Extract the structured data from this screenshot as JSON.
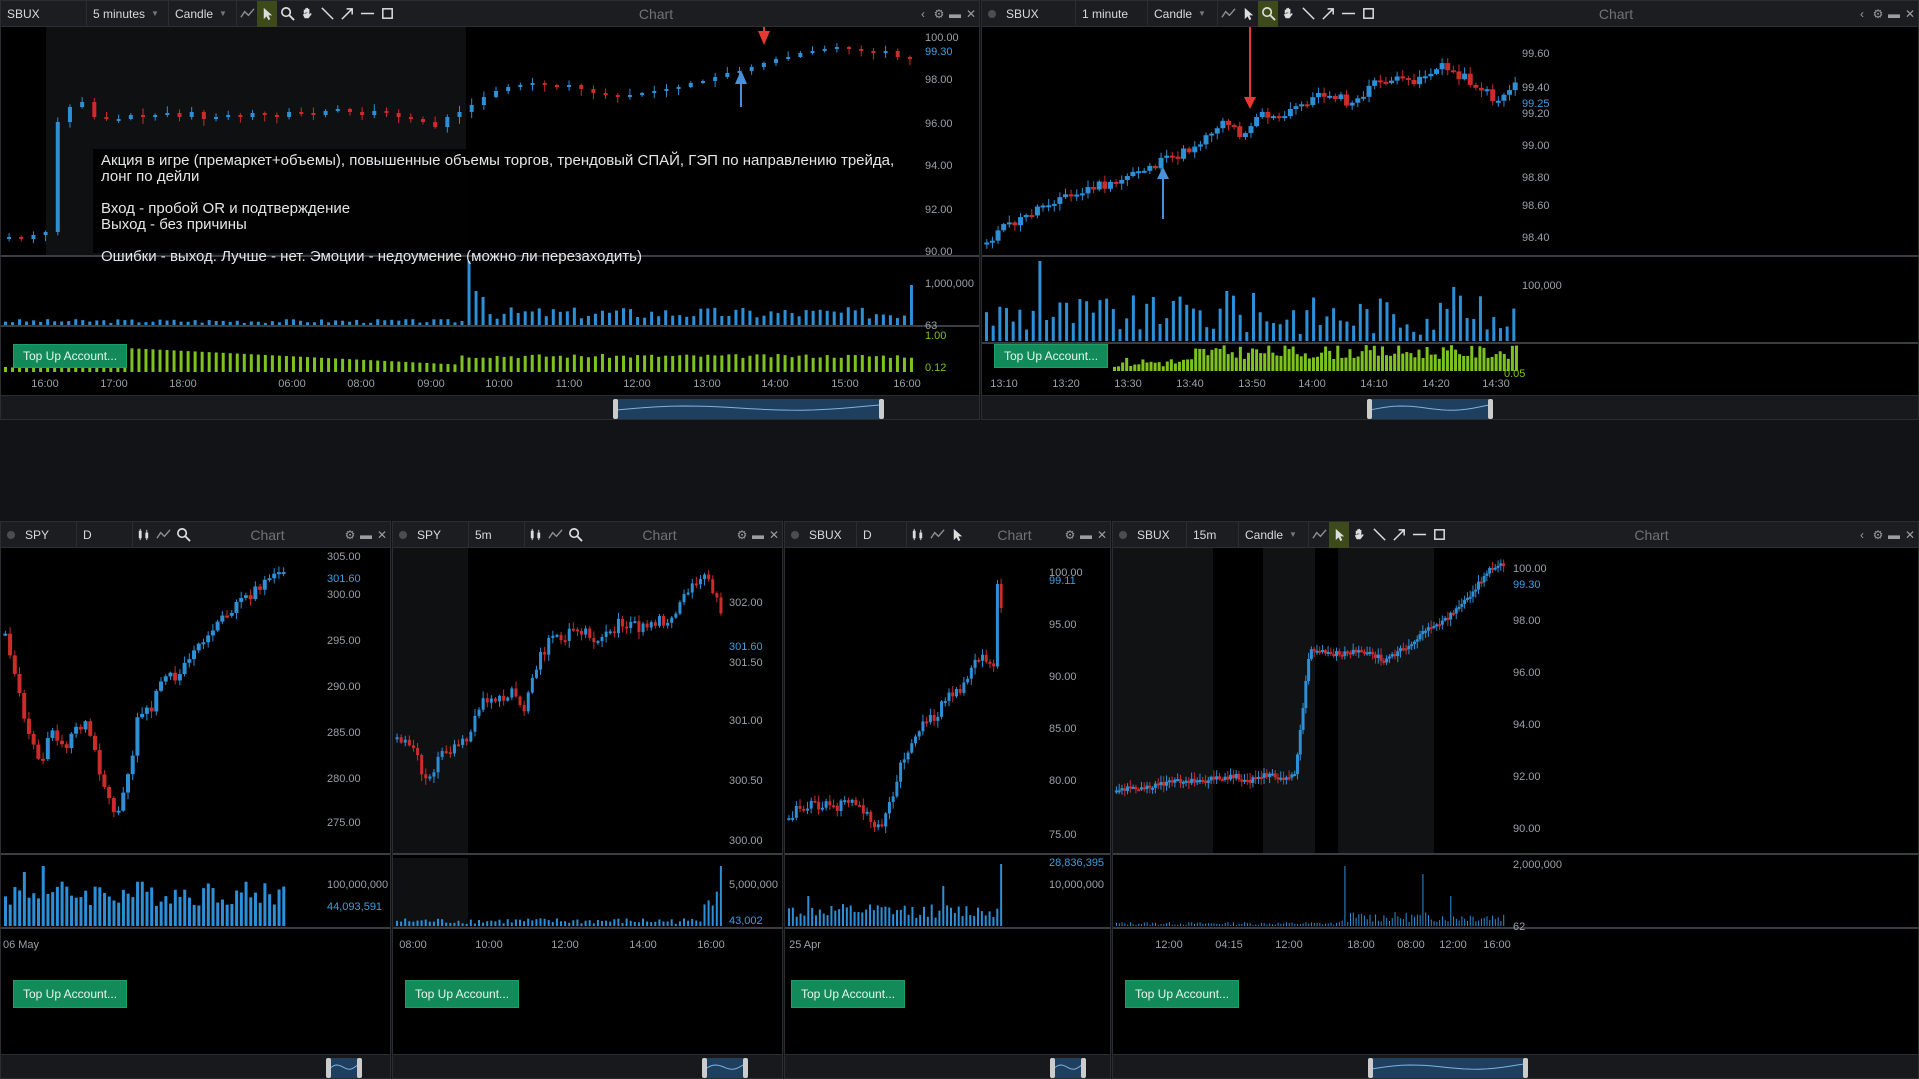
{
  "colors": {
    "up": "#2d8fd6",
    "down": "#cc2b2b",
    "volume": "#2d8fd6",
    "aux": "#7dc21e",
    "topup": "#128a5a",
    "arrow_down": "#e53935",
    "arrow_up": "#4a90d9"
  },
  "common": {
    "chart_label": "Chart",
    "topup_label": "Top Up Account..."
  },
  "annotation": {
    "line1": "Акция в игре (премаркет+объемы), повышенные объемы торгов, трендовый СПАЙ, ГЭП по направлению трейда, лонг по дейли",
    "line2": "",
    "line3": "Вход - пробой OR и подтверждение",
    "line4": "Выход - без причины",
    "line5": "",
    "line6": "Ошибки - выход. Лучше - нет. Эмоции - недоумение (можно ли перезаходить)"
  },
  "win1": {
    "symbol": "SBUX",
    "interval": "5 minutes",
    "style": "Candle",
    "price_ticks": [
      "100.00",
      "98.00",
      "96.00",
      "94.00",
      "92.00",
      "90.00"
    ],
    "price_badge": "99.30",
    "vol_ticks": [
      "1,000,000",
      "63"
    ],
    "aux_ticks": [
      "1.00",
      "0.12"
    ],
    "time_ticks": [
      "16:00",
      "17:00",
      "18:00",
      "06:00",
      "08:00",
      "09:00",
      "10:00",
      "11:00",
      "12:00",
      "13:00",
      "14:00",
      "15:00",
      "16:00"
    ]
  },
  "win2": {
    "symbol": "SBUX",
    "interval": "1 minute",
    "style": "Candle",
    "price_ticks": [
      "99.60",
      "99.40",
      "99.20",
      "99.00",
      "98.80",
      "98.60",
      "98.40"
    ],
    "price_badge": "99.25",
    "vol_ticks": [
      "100,000"
    ],
    "aux_ticks": [
      "0.05"
    ],
    "time_ticks": [
      "13:10",
      "13:20",
      "13:30",
      "13:40",
      "13:50",
      "14:00",
      "14:10",
      "14:20",
      "14:30"
    ]
  },
  "win3": {
    "symbol": "SPY",
    "interval": "D",
    "price_ticks": [
      "305.00",
      "300.00",
      "295.00",
      "290.00",
      "285.00",
      "280.00",
      "275.00"
    ],
    "price_badge": "301.60",
    "vol_ticks": [
      "100,000,000"
    ],
    "vol_badge": "44,093,591",
    "time_ticks": [
      "06 May"
    ]
  },
  "win4": {
    "symbol": "SPY",
    "interval": "5m",
    "price_ticks": [
      "302.00",
      "301.50",
      "301.00",
      "300.50",
      "300.00"
    ],
    "price_badge": "301.60",
    "vol_ticks": [
      "5,000,000"
    ],
    "vol_badge": "43,002",
    "time_ticks": [
      "08:00",
      "10:00",
      "12:00",
      "14:00",
      "16:00"
    ]
  },
  "win5": {
    "symbol": "SBUX",
    "interval": "D",
    "price_ticks": [
      "100.00",
      "95.00",
      "90.00",
      "85.00",
      "80.00",
      "75.00"
    ],
    "price_badge": "99.11",
    "vol_ticks": [
      "10,000,000"
    ],
    "vol_badge": "28,836,395",
    "time_ticks": [
      "25 Apr"
    ]
  },
  "win6": {
    "symbol": "SBUX",
    "interval": "15m",
    "style": "Candle",
    "price_ticks": [
      "100.00",
      "98.00",
      "96.00",
      "94.00",
      "92.00",
      "90.00"
    ],
    "price_badge": "99.30",
    "vol_ticks": [
      "2,000,000",
      "62"
    ],
    "time_ticks": [
      "12:00",
      "04:15",
      "12:00",
      "18:00",
      "08:00",
      "12:00",
      "16:00"
    ]
  }
}
